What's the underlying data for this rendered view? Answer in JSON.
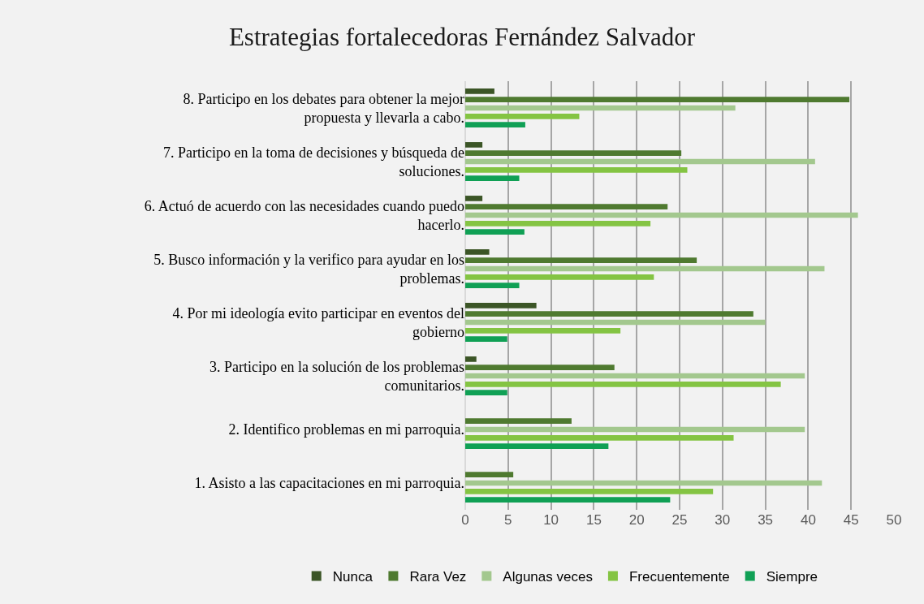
{
  "chart_data": {
    "type": "bar",
    "orientation": "horizontal",
    "title": "Estrategias fortalecedoras Fernández Salvador",
    "categories": [
      "8. Participo en los debates para obtener la mejor propuesta y llevarla a cabo.",
      "7. Participo en la toma de decisiones y búsqueda de soluciones.",
      "6. Actuó de acuerdo con las necesidades cuando puedo hacerlo.",
      "5. Busco información y la verifico para ayudar en los problemas.",
      "4. Por mi ideología evito participar en eventos del gobierno",
      "3. Participo en la solución de los problemas comunitarios.",
      "2. Identifico problemas en mi parroquia.",
      "1. Asisto a las capacitaciones en mi parroquia."
    ],
    "series": [
      {
        "name": "Nunca",
        "color": "#3b5526",
        "values": [
          3.4,
          2.0,
          2.0,
          2.8,
          8.3,
          1.3,
          null,
          null
        ]
      },
      {
        "name": "Rara Vez",
        "color": "#4f7a30",
        "values": [
          44.8,
          25.2,
          23.6,
          27.0,
          33.6,
          17.4,
          12.4,
          5.6
        ]
      },
      {
        "name": "Algunas veces",
        "color": "#a3c88e",
        "values": [
          31.5,
          40.8,
          45.8,
          41.9,
          35.0,
          39.6,
          39.6,
          41.6
        ]
      },
      {
        "name": "Frecuentemente",
        "color": "#84c443",
        "values": [
          13.3,
          25.9,
          21.6,
          22.0,
          18.1,
          36.8,
          31.3,
          28.9
        ]
      },
      {
        "name": "Siempre",
        "color": "#10a055",
        "values": [
          7.0,
          6.3,
          6.9,
          6.3,
          4.9,
          4.9,
          16.7,
          23.9
        ]
      }
    ],
    "xlim": [
      0,
      50
    ],
    "xticks": [
      0,
      5,
      10,
      15,
      20,
      25,
      30,
      35,
      40,
      45,
      50
    ],
    "grid": "x",
    "legend": "bottom"
  }
}
